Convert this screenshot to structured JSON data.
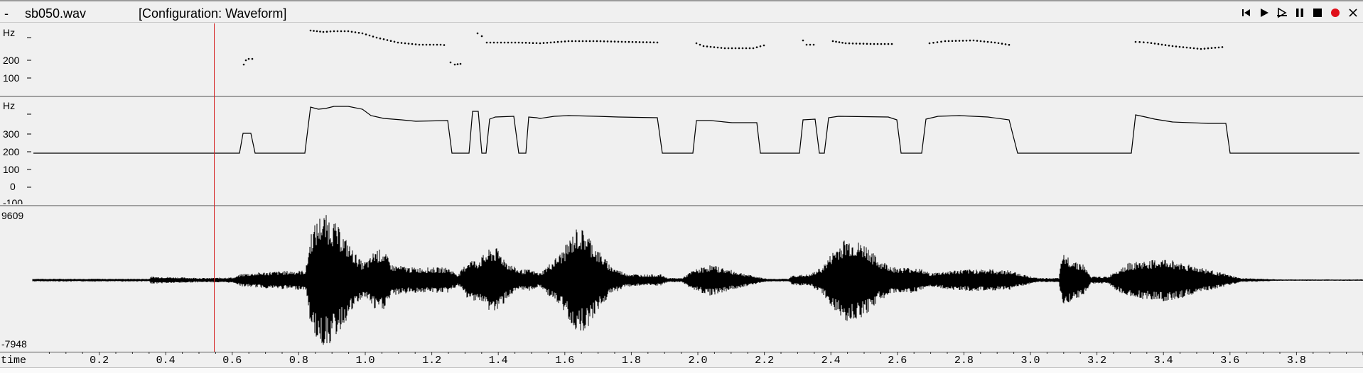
{
  "titlebar": {
    "dash": "-",
    "filename": "sb050.wav",
    "configuration": "[Configuration: Waveform]"
  },
  "controls": [
    {
      "name": "skip-to-start-icon"
    },
    {
      "name": "play-icon"
    },
    {
      "name": "play-selection-icon"
    },
    {
      "name": "pause-icon"
    },
    {
      "name": "stop-icon"
    },
    {
      "name": "record-icon",
      "color": "#e0101b"
    },
    {
      "name": "close-icon"
    }
  ],
  "pitch_dots": {
    "unit": "Hz",
    "y_labels": [
      "200",
      "100"
    ]
  },
  "pitch_track": {
    "unit": "Hz",
    "y_labels": [
      "300",
      "200",
      "100",
      "0",
      "-100"
    ]
  },
  "waveform": {
    "max_label": "9609",
    "min_label": "-7948"
  },
  "time_axis": {
    "label": "time",
    "ticks": [
      "0.2",
      "0.4",
      "0.6",
      "0.8",
      "1.0",
      "1.2",
      "1.4",
      "1.6",
      "1.8",
      "2.0",
      "2.2",
      "2.4",
      "2.6",
      "2.8",
      "3.0",
      "3.2",
      "3.4",
      "3.6",
      "3.8"
    ]
  },
  "cursor": {
    "time": 0.545,
    "color": "#d42020"
  }
}
